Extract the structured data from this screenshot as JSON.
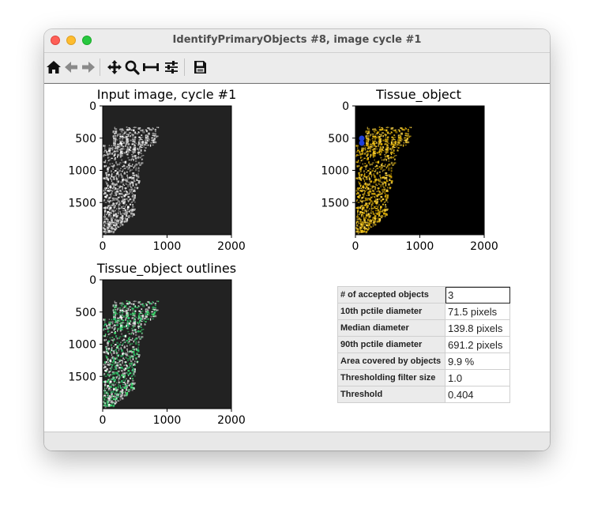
{
  "window": {
    "title": "IdentifyPrimaryObjects #8, image cycle #1"
  },
  "toolbar": {
    "icons": [
      "home-icon",
      "back-arrow-icon",
      "forward-arrow-icon",
      "pan-icon",
      "zoom-icon",
      "subplots-icon",
      "configure-icon",
      "save-icon"
    ]
  },
  "plots": {
    "input_title": "Input image, cycle #1",
    "objects_title": "Tissue_object",
    "outlines_title": "Tissue_object outlines",
    "x_ticks": [
      "0",
      "1000",
      "2000"
    ],
    "y_ticks": [
      "0",
      "500",
      "1000",
      "1500"
    ]
  },
  "stats": {
    "rows": [
      {
        "label": "# of accepted objects",
        "value": "3"
      },
      {
        "label": "10th pctile diameter",
        "value": "71.5 pixels"
      },
      {
        "label": "Median diameter",
        "value": "139.8 pixels"
      },
      {
        "label": "90th pctile diameter",
        "value": "691.2 pixels"
      },
      {
        "label": "Area covered by objects",
        "value": "9.9 %"
      },
      {
        "label": "Thresholding filter size",
        "value": "1.0"
      },
      {
        "label": "Threshold",
        "value": "0.404"
      }
    ]
  },
  "colors": {
    "object_fill": "#f2c418",
    "small_object": "#1f3fd8",
    "outline": "#40e070",
    "image_bg": "#222222"
  }
}
